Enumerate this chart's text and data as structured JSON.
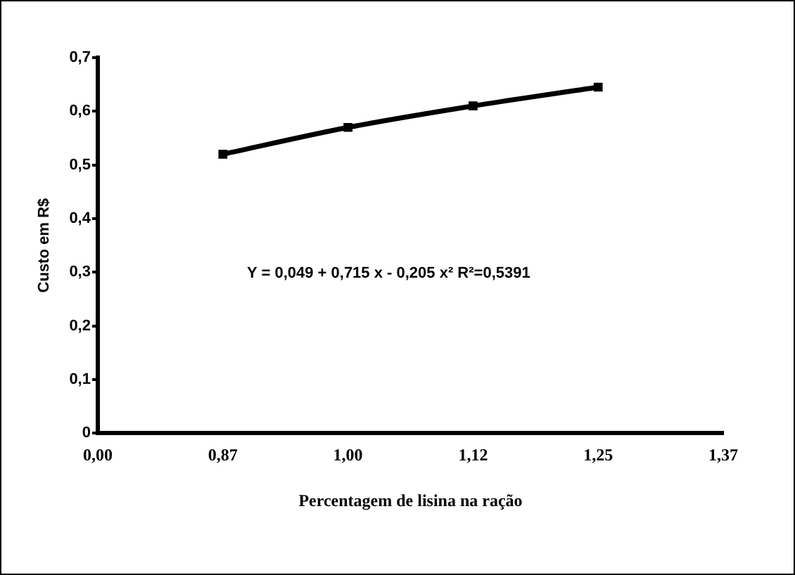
{
  "chart_data": {
    "type": "line",
    "xlabel": "Percentagem de lisina na ração",
    "ylabel": "Custo em R$",
    "categories": [
      "0,00",
      "0,87",
      "1,00",
      "1,12",
      "1,25",
      "1,37"
    ],
    "series": [
      {
        "color": "#000000",
        "values": [
          null,
          0.52,
          0.57,
          0.61,
          0.645,
          null
        ]
      }
    ],
    "ylim": [
      0,
      0.7
    ],
    "yticks": [
      0,
      {
        "value": 0.1,
        "label": "0,1"
      },
      {
        "value": 0.2,
        "label": "0,2"
      },
      {
        "value": 0.3,
        "label": "0,3"
      },
      {
        "value": 0.4,
        "label": "0,4"
      },
      {
        "value": 0.5,
        "label": "0,5"
      },
      {
        "value": 0.6,
        "label": "0,6"
      },
      {
        "value": 0.7,
        "label": "0,7"
      }
    ],
    "annotations": [
      "Y = 0,049 + 0,715 x - 0,205 x² R²=0,5391"
    ],
    "grid": false,
    "legend": false,
    "marker": "square",
    "line_style": "solid"
  }
}
